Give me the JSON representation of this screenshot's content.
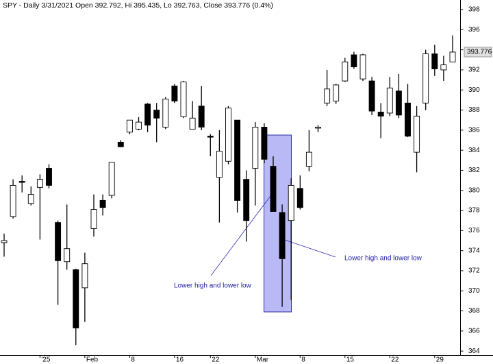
{
  "chart_data": {
    "type": "candlestick",
    "title": "SPY - Daily 3/31/2021 Open 392.792, Hi 395.435, Lo 392.763, Close 393.776 (0.4%)",
    "categories": [
      null,
      null,
      null,
      null,
      "'25",
      null,
      null,
      null,
      null,
      "Feb",
      null,
      null,
      null,
      null,
      "8",
      null,
      null,
      null,
      null,
      "16",
      null,
      null,
      null,
      "22",
      null,
      null,
      null,
      null,
      "Mar",
      null,
      null,
      null,
      null,
      "8",
      null,
      null,
      null,
      null,
      "15",
      null,
      null,
      null,
      null,
      "22",
      null,
      null,
      null,
      null,
      "29",
      null,
      null
    ],
    "open": [
      374.8,
      377.4,
      380.9,
      378.7,
      380.3,
      382.2,
      376.8,
      372.9,
      372.1,
      370.3,
      376.2,
      379.0,
      379.5,
      384.8,
      385.8,
      386.1,
      388.6,
      388.0,
      386.3,
      390.4,
      387.35,
      386.1,
      388.4,
      385.4,
      381.3,
      382.9,
      387.0,
      381.1,
      382.2,
      386.3,
      382.4,
      377.8,
      377.0,
      380.2,
      382.4,
      386.2,
      388.7,
      388.9,
      390.9,
      393.5,
      391.1,
      390.9,
      387.8,
      387.7,
      389.9,
      388.7,
      383.8,
      388.7,
      393.6,
      392.0,
      392.792
    ],
    "high": [
      375.7,
      381.1,
      381.5,
      380.4,
      381.6,
      382.6,
      377.0,
      378.6,
      372.2,
      373.8,
      379.6,
      379.6,
      382.8,
      385.0,
      387.0,
      387.3,
      388.7,
      388.7,
      389.3,
      390.6,
      390.9,
      388.9,
      390.4,
      385.6,
      386.0,
      388.4,
      387.0,
      382.0,
      386.8,
      386.7,
      383.4,
      378.6,
      381.2,
      381.5,
      386.0,
      386.5,
      392.0,
      390.6,
      393.2,
      393.8,
      393.6,
      391.3,
      388.7,
      391.3,
      391.6,
      390.6,
      388.4,
      394.0,
      394.5,
      393.4,
      395.435
    ],
    "low": [
      373.4,
      377.2,
      379.8,
      378.5,
      375.1,
      380.2,
      368.6,
      372.1,
      364.6,
      366.9,
      375.4,
      377.5,
      379.2,
      384.3,
      385.6,
      386.0,
      385.8,
      384.8,
      386.1,
      388.7,
      387.2,
      386.1,
      386.0,
      383.4,
      376.8,
      382.6,
      377.8,
      374.9,
      378.5,
      382.7,
      377.9,
      368.4,
      369.1,
      378.1,
      381.9,
      385.8,
      388.4,
      388.6,
      390.8,
      392.1,
      390.9,
      387.5,
      385.2,
      387.4,
      387.2,
      385.3,
      381.8,
      388.0,
      391.4,
      390.9,
      392.763
    ],
    "close": [
      375.0,
      380.5,
      380.8,
      379.6,
      381.1,
      380.5,
      373.0,
      374.2,
      366.3,
      372.7,
      378.1,
      378.3,
      382.8,
      384.35,
      387.0,
      386.8,
      386.5,
      387.2,
      389.1,
      388.9,
      390.8,
      387.2,
      386.3,
      385.3,
      383.9,
      388.2,
      379.0,
      377.0,
      386.3,
      383.1,
      377.9,
      373.2,
      380.5,
      378.3,
      383.8,
      386.3,
      390.1,
      390.5,
      392.8,
      392.3,
      393.5,
      387.9,
      387.4,
      390.2,
      387.5,
      385.4,
      387.4,
      393.6,
      392.1,
      392.5,
      393.776
    ],
    "last_label": "393.776",
    "up_color": "#ffffff",
    "down_color": "#000000",
    "ylim": [
      363.6,
      398.96
    ],
    "yticks": [
      364,
      366,
      368,
      370,
      372,
      374,
      376,
      378,
      380,
      382,
      384,
      386,
      388,
      390,
      392,
      394,
      396,
      398
    ],
    "annotations": [
      "Lower high and lower low",
      "Lower high and lower low"
    ]
  }
}
